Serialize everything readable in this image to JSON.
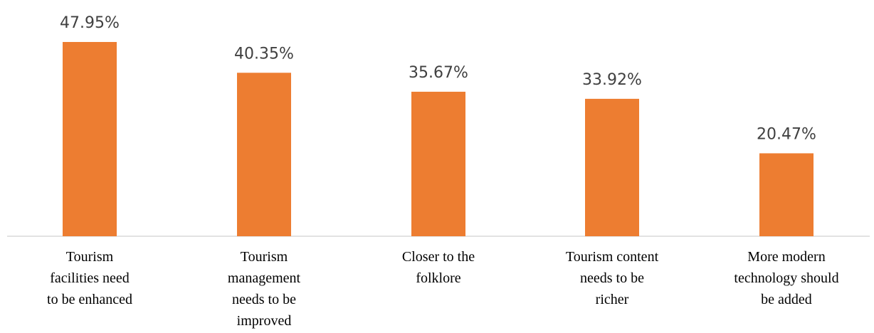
{
  "chart_data": {
    "type": "bar",
    "categories": [
      [
        "Tourism",
        "facilities need",
        "to be enhanced"
      ],
      [
        "Tourism",
        "management",
        "needs to be",
        "improved"
      ],
      [
        "Closer to the",
        "folklore"
      ],
      [
        "Tourism content",
        "needs to be",
        "richer"
      ],
      [
        "More modern",
        "technology should",
        "be added"
      ]
    ],
    "values": [
      47.95,
      40.35,
      35.67,
      33.92,
      20.47
    ],
    "value_labels": [
      "47.95%",
      "40.35%",
      "35.67%",
      "33.92%",
      "20.47%"
    ],
    "title": "",
    "xlabel": "",
    "ylabel": "",
    "ylim": [
      0,
      47.95
    ],
    "grid": false,
    "bar_color": "#ED7D31",
    "axis_color": "#D9D9D9"
  }
}
